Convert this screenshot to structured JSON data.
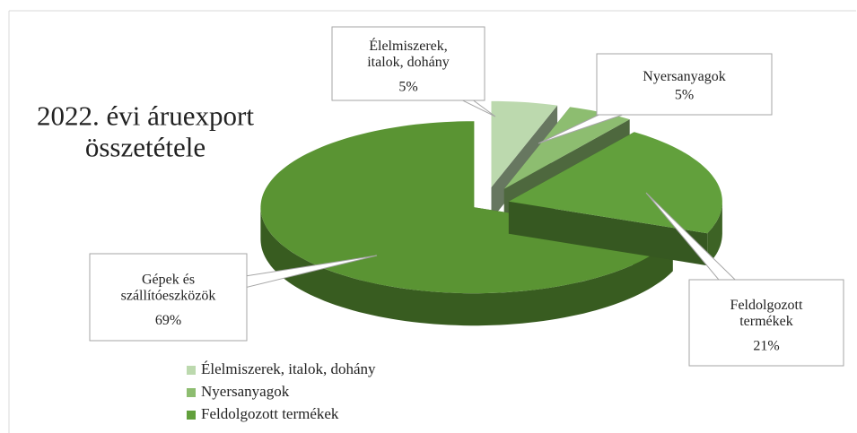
{
  "chart_data": {
    "type": "pie3d",
    "title": "2022. évi áruexport összetétele",
    "categories": [
      "Élelmiszerek, italok, dohány",
      "Nyersanyagok",
      "Feldolgozott termékek",
      "Gépek és szállítóeszközök"
    ],
    "values": [
      5,
      5,
      21,
      69
    ],
    "value_labels": [
      "5%",
      "5%",
      "21%",
      "69%"
    ],
    "colors": [
      "#bcd9ae",
      "#8dbd70",
      "#62a03c",
      "#5a9433"
    ],
    "legend": "bottom-left"
  }
}
